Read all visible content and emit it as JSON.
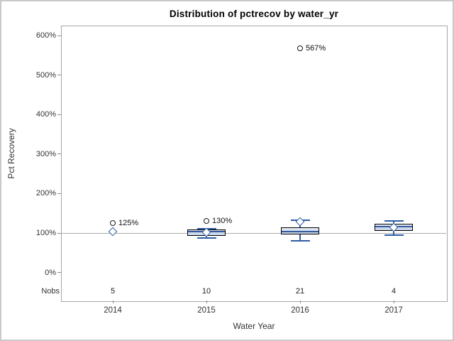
{
  "window": {
    "background": "#ffffff",
    "border_color": "#c9c9c9"
  },
  "colors": {
    "box_fill_top": "#e8eef6",
    "box_fill_bottom": "#c3d1e6",
    "box_border": "#000000",
    "median": "#33589e",
    "whisker": "#2e5ca5",
    "mean_marker": "#2e5ca5",
    "outlier_stroke": "#1a1a1a",
    "reference_line": "#ababab",
    "frame": "#a7a7a7",
    "text": "#333333"
  },
  "chart_data": {
    "type": "boxplot",
    "title": "Distribution of pctrecov by water_yr",
    "xlabel": "Water Year",
    "ylabel": "Pct Recovery",
    "y_unit": "%",
    "y_ticks": [
      0,
      100,
      200,
      300,
      400,
      500,
      600
    ],
    "y_tick_labels": [
      "0%",
      "100%",
      "200%",
      "300%",
      "400%",
      "500%",
      "600%"
    ],
    "ylim": [
      0,
      600
    ],
    "grid": "off",
    "legend": "none",
    "reference_line_y": 100,
    "nobs_label": "Nobs",
    "mean_marker": "diamond",
    "groups": [
      {
        "label": "2014",
        "nobs": "5",
        "q1": 100,
        "median": 100,
        "q3": 100,
        "whisker_low": 100,
        "whisker_high": 100,
        "mean": 104,
        "outliers": [
          {
            "value": 125,
            "label": "125%"
          }
        ]
      },
      {
        "label": "2015",
        "nobs": "10",
        "q1": 93,
        "median": 103,
        "q3": 109,
        "whisker_low": 87,
        "whisker_high": 111,
        "mean": 101,
        "outliers": [
          {
            "value": 130,
            "label": "130%"
          }
        ]
      },
      {
        "label": "2016",
        "nobs": "21",
        "q1": 96,
        "median": 103,
        "q3": 114,
        "whisker_low": 81,
        "whisker_high": 132,
        "mean": 129,
        "outliers": [
          {
            "value": 567,
            "label": "567%"
          }
        ]
      },
      {
        "label": "2017",
        "nobs": "4",
        "q1": 105,
        "median": 116,
        "q3": 123,
        "whisker_low": 95,
        "whisker_high": 131,
        "mean": 114,
        "outliers": []
      }
    ]
  }
}
